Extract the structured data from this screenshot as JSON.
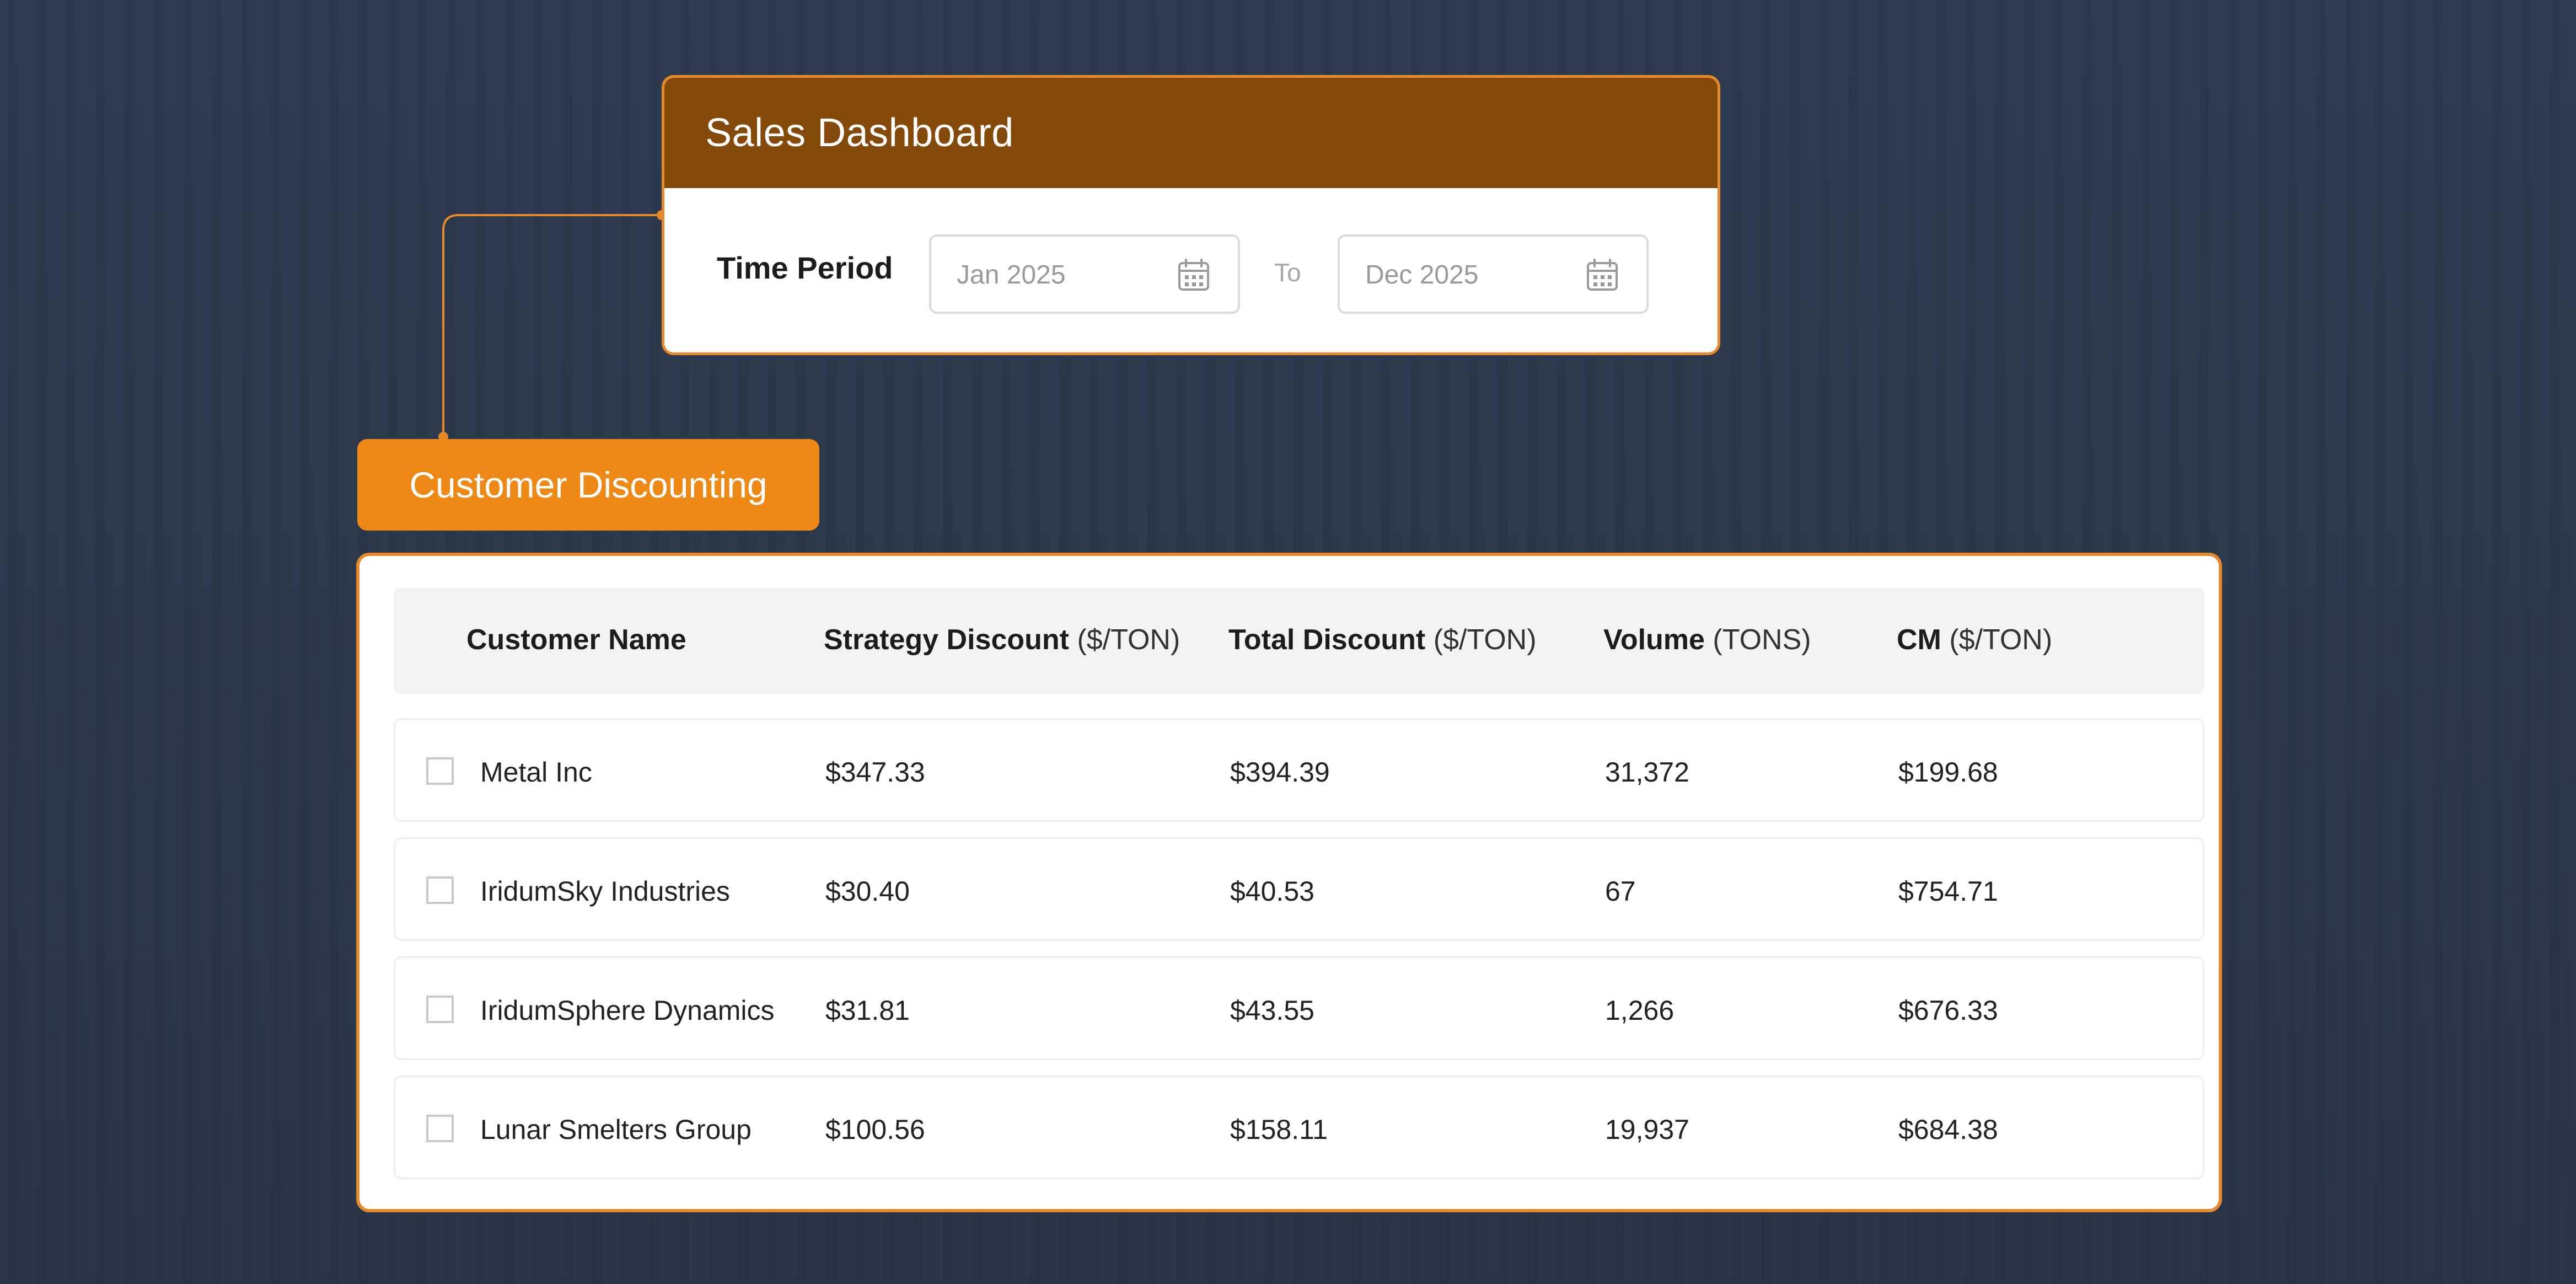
{
  "sales_dashboard": {
    "title": "Sales Dashboard",
    "time_period_label": "Time Period",
    "from_date": "Jan 2025",
    "to_label": "To",
    "to_date": "Dec 2025"
  },
  "customer_discounting": {
    "title": "Customer Discounting",
    "columns": [
      {
        "name": "Customer Name",
        "unit": ""
      },
      {
        "name": "Strategy Discount",
        "unit": "($/TON)"
      },
      {
        "name": "Total Discount",
        "unit": "($/TON)"
      },
      {
        "name": "Volume",
        "unit": "(TONS)"
      },
      {
        "name": "CM",
        "unit": "($/TON)"
      }
    ],
    "rows": [
      {
        "customer": "Metal Inc",
        "strategy_discount": "$347.33",
        "total_discount": "$394.39",
        "volume": "31,372",
        "cm": "$199.68"
      },
      {
        "customer": "IridumSky Industries",
        "strategy_discount": "$30.40",
        "total_discount": "$40.53",
        "volume": "67",
        "cm": "$754.71"
      },
      {
        "customer": "IridumSphere Dynamics",
        "strategy_discount": "$31.81",
        "total_discount": "$43.55",
        "volume": "1,266",
        "cm": "$676.33"
      },
      {
        "customer": "Lunar Smelters Group",
        "strategy_discount": "$100.56",
        "total_discount": "$158.11",
        "volume": "19,937",
        "cm": "$684.38"
      }
    ]
  },
  "icons": {
    "date_picker": "calendar-icon"
  },
  "colors": {
    "header_brown": "#854a09",
    "accent_orange": "#ef8916",
    "card_border": "#e6892a",
    "background": "#2b384b"
  }
}
